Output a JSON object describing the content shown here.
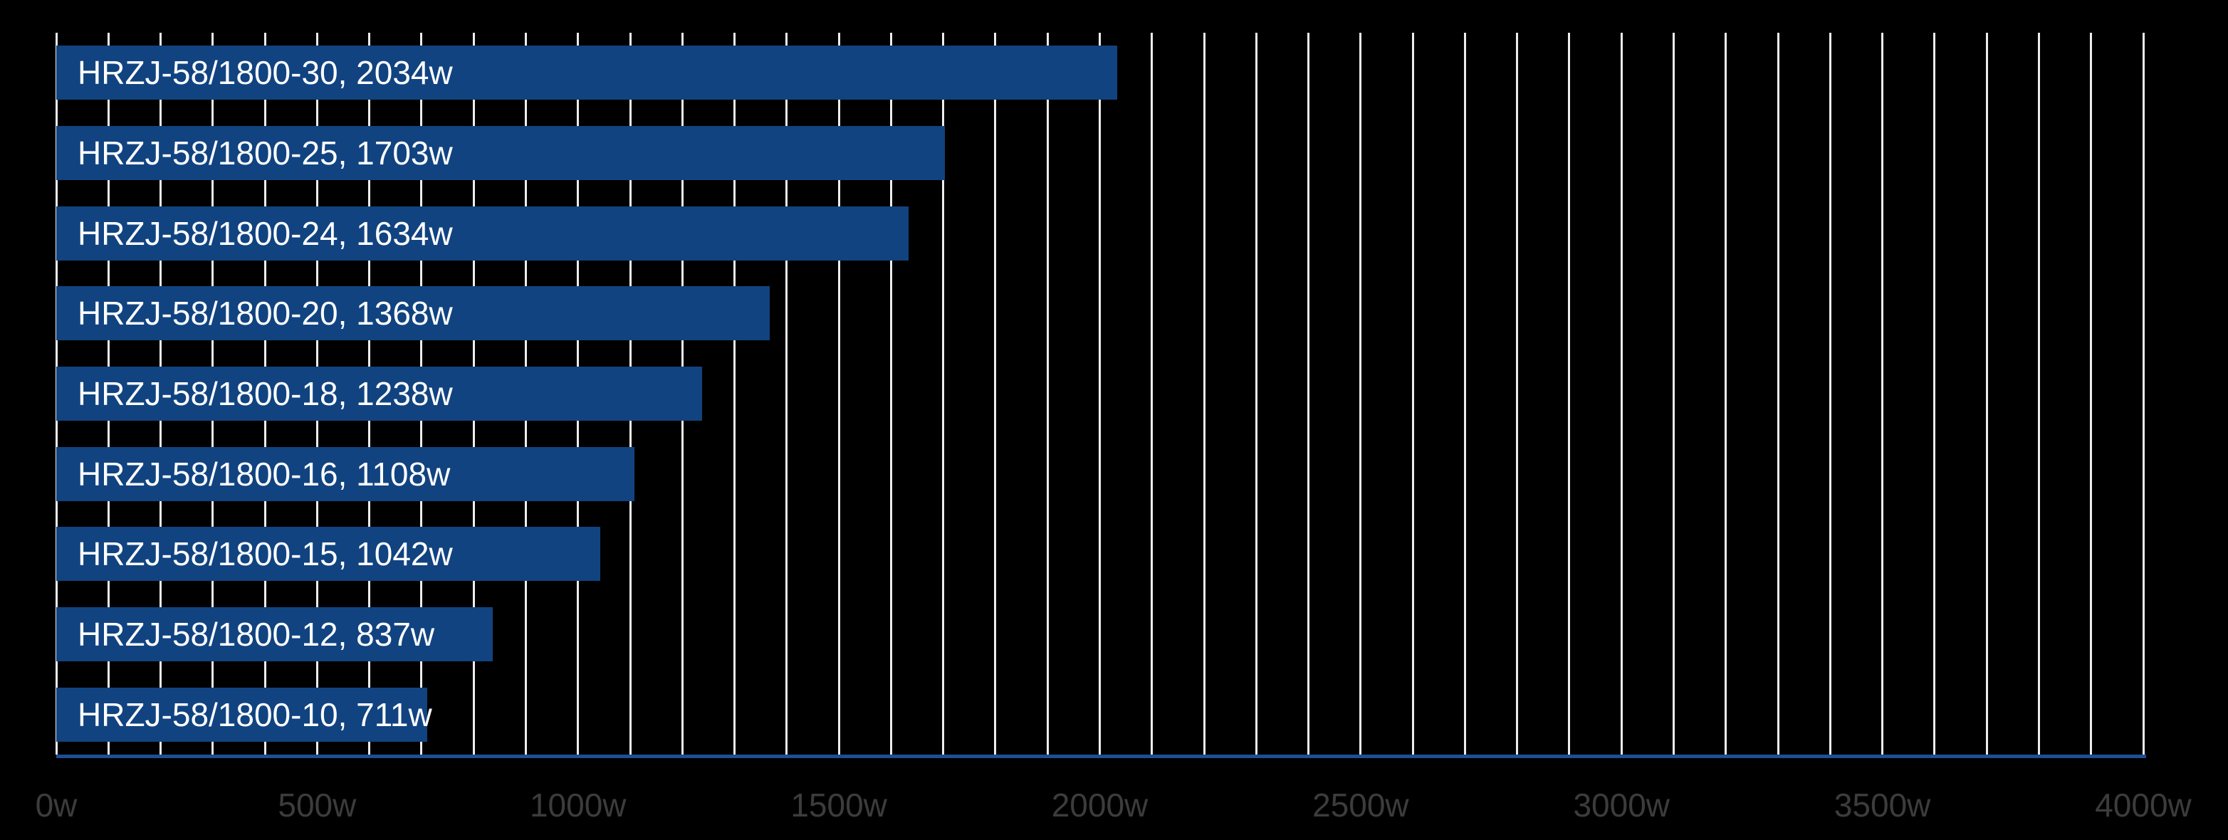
{
  "chart_data": {
    "type": "bar",
    "orientation": "horizontal",
    "title": "",
    "xlabel": "",
    "ylabel": "",
    "categories": [
      "HRZJ-58/1800-30",
      "HRZJ-58/1800-25",
      "HRZJ-58/1800-24",
      "HRZJ-58/1800-20",
      "HRZJ-58/1800-18",
      "HRZJ-58/1800-16",
      "HRZJ-58/1800-15",
      "HRZJ-58/1800-12",
      "HRZJ-58/1800-10"
    ],
    "values": [
      2034,
      1703,
      1634,
      1368,
      1238,
      1108,
      1042,
      837,
      711
    ],
    "value_unit": "w",
    "bar_labels": [
      "HRZJ-58/1800-30, 2034w",
      "HRZJ-58/1800-25, 1703w",
      "HRZJ-58/1800-24, 1634w",
      "HRZJ-58/1800-20, 1368w",
      "HRZJ-58/1800-18, 1238w",
      "HRZJ-58/1800-16, 1108w",
      "HRZJ-58/1800-15, 1042w",
      "HRZJ-58/1800-12, 837w",
      "HRZJ-58/1800-10, 711w"
    ],
    "xlim": [
      0,
      4000
    ],
    "x_tick_step": 500,
    "x_tick_labels": [
      "0w",
      "500w",
      "1000w",
      "1500w",
      "2000w",
      "2500w",
      "3000w",
      "3500w",
      "4000w"
    ],
    "gridline_step": 100,
    "grid": "vertical-only",
    "legend": "none",
    "colors": {
      "background": "#000000",
      "bar_fill": "#114380",
      "bar_label_text": "#FFFFFF",
      "gridline": "#EDEDED",
      "axis_line": "#1C4F94",
      "tick_label_text": "#3C3C3C"
    }
  }
}
